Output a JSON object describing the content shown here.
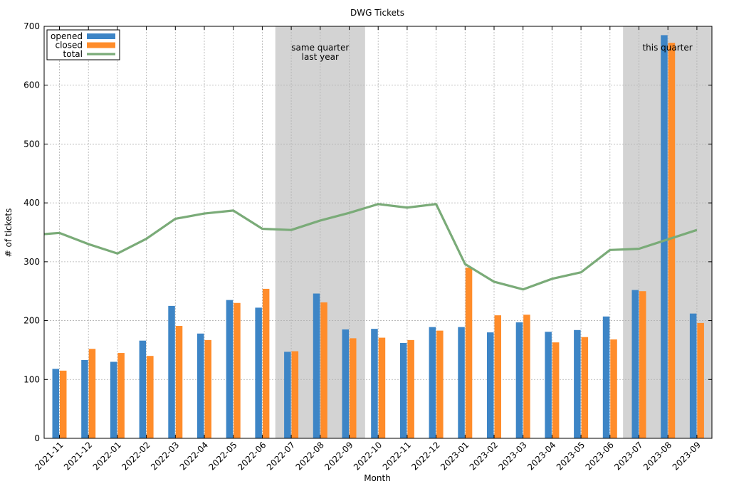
{
  "chart_data": {
    "type": "bar",
    "title": "DWG Tickets",
    "xlabel": "Month",
    "ylabel": "# of tickets",
    "ylim": [
      0,
      700
    ],
    "yticks": [
      0,
      100,
      200,
      300,
      400,
      500,
      600,
      700
    ],
    "grid": true,
    "legend_position": "top-left",
    "categories": [
      "2021-11",
      "2021-12",
      "2022-01",
      "2022-02",
      "2022-03",
      "2022-04",
      "2022-05",
      "2022-06",
      "2022-07",
      "2022-08",
      "2022-09",
      "2022-10",
      "2022-11",
      "2022-12",
      "2023-01",
      "2023-02",
      "2023-03",
      "2023-04",
      "2023-05",
      "2023-06",
      "2023-07",
      "2023-08",
      "2023-09"
    ],
    "series": [
      {
        "name": "opened",
        "type": "bar",
        "color": "#3d85c6",
        "values": [
          118,
          133,
          130,
          166,
          225,
          178,
          235,
          222,
          147,
          246,
          185,
          186,
          162,
          189,
          189,
          180,
          197,
          181,
          184,
          207,
          252,
          685,
          212
        ]
      },
      {
        "name": "closed",
        "type": "bar",
        "color": "#ff8c2a",
        "values": [
          115,
          152,
          145,
          140,
          191,
          167,
          230,
          254,
          148,
          231,
          170,
          171,
          167,
          183,
          290,
          209,
          210,
          163,
          172,
          168,
          250,
          672,
          196
        ]
      },
      {
        "name": "total",
        "type": "line",
        "color": "#7aab78",
        "values": [
          349,
          330,
          314,
          339,
          373,
          382,
          387,
          356,
          354,
          370,
          383,
          398,
          392,
          398,
          296,
          266,
          253,
          271,
          282,
          320,
          322,
          338,
          354
        ]
      }
    ],
    "line_extends_from": 347,
    "highlight_bands": [
      {
        "label_lines": [
          "same quarter",
          "last year"
        ],
        "start": "2022-07",
        "end": "2022-09"
      },
      {
        "label_lines": [
          "this quarter"
        ],
        "start": "2023-07",
        "end": "2023-09"
      }
    ],
    "colors": {
      "band": "#d3d3d3",
      "grid": "#b0b0b0"
    }
  }
}
